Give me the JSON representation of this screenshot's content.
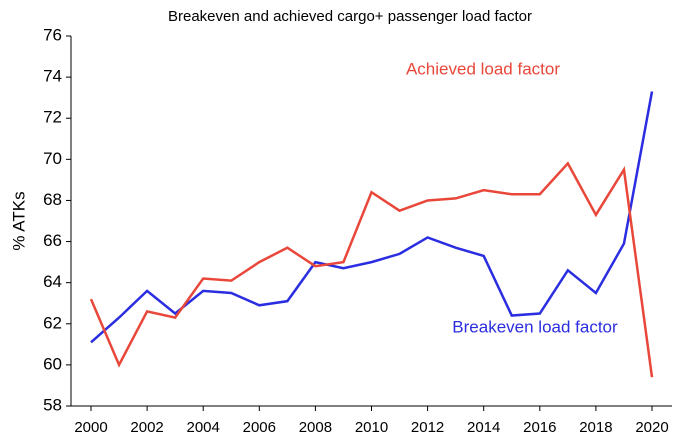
{
  "chart_data": {
    "type": "line",
    "title": "Breakeven and achieved cargo+ passenger load factor",
    "y_label": "% ATKs",
    "x": [
      2000,
      2001,
      2002,
      2003,
      2004,
      2005,
      2006,
      2007,
      2008,
      2009,
      2010,
      2011,
      2012,
      2013,
      2014,
      2015,
      2016,
      2017,
      2018,
      2019,
      2020
    ],
    "series": [
      {
        "name": "Breakeven load factor",
        "color": "#2b2de0",
        "values": [
          61.1,
          62.3,
          63.6,
          62.5,
          63.6,
          63.5,
          62.9,
          63.1,
          65.0,
          64.7,
          65.0,
          65.4,
          66.2,
          65.7,
          65.3,
          62.4,
          62.5,
          64.6,
          63.5,
          65.9,
          73.3
        ]
      },
      {
        "name": "Achieved load factor",
        "color": "#e8473a",
        "values": [
          63.2,
          60.0,
          62.6,
          62.3,
          64.2,
          64.1,
          65.0,
          65.7,
          64.8,
          65.0,
          68.4,
          67.5,
          68.0,
          68.1,
          68.5,
          68.3,
          68.3,
          69.8,
          67.3,
          69.5,
          59.4
        ]
      }
    ],
    "xlim": [
      2000,
      2020
    ],
    "xticks": [
      2000,
      2002,
      2004,
      2006,
      2008,
      2010,
      2012,
      2014,
      2016,
      2018,
      2020
    ],
    "ylim": [
      58,
      76
    ],
    "yticks": [
      58,
      60,
      62,
      64,
      66,
      68,
      70,
      72,
      74,
      76
    ],
    "grid": false
  }
}
